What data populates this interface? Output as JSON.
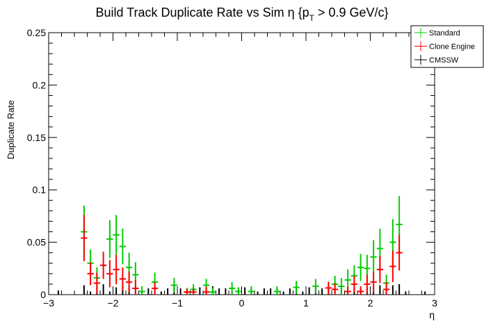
{
  "chart_data": {
    "type": "scatter",
    "title_main": "Build Track Duplicate Rate vs Sim η {p",
    "title_sub": "T",
    "title_tail": " > 0.9 GeV/c}",
    "xlabel": "η",
    "ylabel": "Duplicate Rate",
    "xlim": [
      -3,
      3
    ],
    "ylim": [
      0,
      0.25
    ],
    "bin_width": 0.1,
    "grid": false,
    "legend_placement": "top-right",
    "x_ticks": [
      "−3",
      "−2",
      "−1",
      "0",
      "1",
      "2",
      "3"
    ],
    "x_tick_values": [
      -3,
      -2,
      -1,
      0,
      1,
      2,
      3
    ],
    "y_ticks": [
      "0",
      "0.05",
      "0.1",
      "0.15",
      "0.2",
      "0.25"
    ],
    "y_tick_values": [
      0,
      0.05,
      0.1,
      0.15,
      0.2,
      0.25
    ],
    "series": [
      {
        "name": "Standard",
        "color": "#00cc00",
        "points": [
          [
            -2.45,
            0.06,
            0.025
          ],
          [
            -2.35,
            0.03,
            0.013
          ],
          [
            -2.25,
            0.016,
            0.01
          ],
          [
            -2.05,
            0.053,
            0.018
          ],
          [
            -1.95,
            0.057,
            0.019
          ],
          [
            -1.85,
            0.046,
            0.017
          ],
          [
            -1.75,
            0.026,
            0.014
          ],
          [
            -1.65,
            0.019,
            0.012
          ],
          [
            -1.55,
            0.003,
            0.005
          ],
          [
            -1.35,
            0.012,
            0.009
          ],
          [
            -1.05,
            0.009,
            0.007
          ],
          [
            -0.85,
            0.0025,
            0.004
          ],
          [
            -0.75,
            0.005,
            0.005
          ],
          [
            -0.55,
            0.009,
            0.006
          ],
          [
            -0.45,
            0.0025,
            0.004
          ],
          [
            -0.15,
            0.006,
            0.006
          ],
          [
            -0.05,
            0.003,
            0.004
          ],
          [
            0.15,
            0.003,
            0.005
          ],
          [
            0.55,
            0.003,
            0.005
          ],
          [
            0.85,
            0.007,
            0.006
          ],
          [
            1.15,
            0.008,
            0.007
          ],
          [
            1.45,
            0.01,
            0.008
          ],
          [
            1.55,
            0.008,
            0.008
          ],
          [
            1.65,
            0.014,
            0.01
          ],
          [
            1.75,
            0.018,
            0.01
          ],
          [
            1.85,
            0.026,
            0.013
          ],
          [
            1.95,
            0.025,
            0.013
          ],
          [
            2.05,
            0.036,
            0.016
          ],
          [
            2.15,
            0.044,
            0.019
          ],
          [
            2.25,
            0.011,
            0.008
          ],
          [
            2.35,
            0.05,
            0.022
          ],
          [
            2.45,
            0.067,
            0.027
          ]
        ]
      },
      {
        "name": "Clone Engine",
        "color": "#ff0000",
        "points": [
          [
            -2.45,
            0.054,
            0.022
          ],
          [
            -2.35,
            0.02,
            0.011
          ],
          [
            -2.25,
            0.011,
            0.01
          ],
          [
            -2.15,
            0.028,
            0.013
          ],
          [
            -2.05,
            0.02,
            0.013
          ],
          [
            -1.95,
            0.024,
            0.014
          ],
          [
            -1.85,
            0.015,
            0.011
          ],
          [
            -1.75,
            0.012,
            0.01
          ],
          [
            -1.65,
            0.006,
            0.008
          ],
          [
            -1.35,
            0.006,
            0.006
          ],
          [
            -0.85,
            0.0025,
            0.003
          ],
          [
            -0.75,
            0.0025,
            0.003
          ],
          [
            -0.55,
            0.0025,
            0.005
          ],
          [
            1.35,
            0.0064,
            0.006
          ],
          [
            1.45,
            0.005,
            0.006
          ],
          [
            1.65,
            0.003,
            0.005
          ],
          [
            1.75,
            0.01,
            0.008
          ],
          [
            1.85,
            0.003,
            0.005
          ],
          [
            1.95,
            0.01,
            0.009
          ],
          [
            2.05,
            0.012,
            0.01
          ],
          [
            2.15,
            0.024,
            0.013
          ],
          [
            2.25,
            0.005,
            0.007
          ],
          [
            2.35,
            0.027,
            0.015
          ],
          [
            2.45,
            0.04,
            0.017
          ]
        ]
      },
      {
        "name": "CMSSW",
        "color": "#000000",
        "points": [
          [
            -2.85,
            0,
            0.004
          ],
          [
            -2.45,
            0,
            0.009
          ],
          [
            -2.35,
            0,
            0.003
          ],
          [
            -2.25,
            0,
            0.008
          ],
          [
            -2.15,
            0,
            0.01
          ],
          [
            -2.05,
            0,
            0.003
          ],
          [
            -1.95,
            0,
            0.007
          ],
          [
            -1.85,
            0,
            0.008
          ],
          [
            -1.75,
            0,
            0.008
          ],
          [
            -1.65,
            0,
            0.008
          ],
          [
            -1.55,
            0,
            0.003
          ],
          [
            -1.45,
            0,
            0.006
          ],
          [
            -1.35,
            0,
            0.008
          ],
          [
            -1.25,
            0,
            0.003
          ],
          [
            -1.15,
            0,
            0.006
          ],
          [
            -1.05,
            0,
            0.009
          ],
          [
            -0.95,
            0,
            0.006
          ],
          [
            -0.85,
            0,
            0.003
          ],
          [
            -0.75,
            0,
            0.007
          ],
          [
            -0.65,
            0,
            0.007
          ],
          [
            -0.55,
            0,
            0.006
          ],
          [
            -0.45,
            0,
            0.008
          ],
          [
            -0.35,
            0,
            0.006
          ],
          [
            -0.25,
            0,
            0.006
          ],
          [
            -0.15,
            0,
            0.003
          ],
          [
            -0.05,
            0,
            0.007
          ],
          [
            0.05,
            0,
            0.007
          ],
          [
            0.15,
            0,
            0.006
          ],
          [
            0.25,
            0,
            0.003
          ],
          [
            0.35,
            0,
            0.006
          ],
          [
            0.45,
            0,
            0.006
          ],
          [
            0.55,
            0,
            0.006
          ],
          [
            0.65,
            0,
            0.003
          ],
          [
            0.75,
            0,
            0.006
          ],
          [
            0.85,
            0,
            0.006
          ],
          [
            0.95,
            0,
            0.003
          ],
          [
            1.05,
            0,
            0.007
          ],
          [
            1.15,
            0,
            0.007
          ],
          [
            1.25,
            0,
            0.006
          ],
          [
            1.35,
            0,
            0.01
          ],
          [
            1.45,
            0,
            0.006
          ],
          [
            1.55,
            0,
            0.007
          ],
          [
            1.65,
            0,
            0.003
          ],
          [
            1.75,
            0,
            0.007
          ],
          [
            1.85,
            0,
            0.006
          ],
          [
            1.95,
            0,
            0.007
          ],
          [
            2.05,
            0,
            0.007
          ],
          [
            2.15,
            0,
            0.009
          ],
          [
            2.25,
            0,
            0.006
          ],
          [
            2.35,
            0,
            0.009
          ],
          [
            2.45,
            0,
            0.01
          ],
          [
            2.55,
            0,
            0.003
          ],
          [
            2.85,
            0,
            0.003
          ]
        ]
      }
    ]
  }
}
